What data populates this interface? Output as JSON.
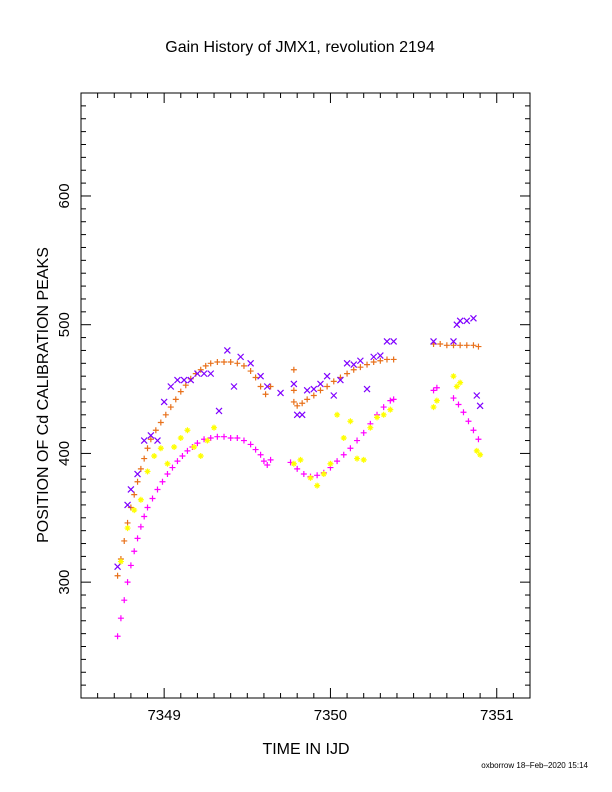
{
  "chart_data": {
    "type": "scatter",
    "title": "Gain History of JMX1, revolution 2194",
    "xlabel": "TIME IN IJD",
    "ylabel": "POSITION OF Cd CALIBRATION PEAKS",
    "xlim": [
      7348.5,
      7351.2
    ],
    "ylim": [
      210,
      680
    ],
    "xticks": [
      7349,
      7350,
      7351
    ],
    "yticks": [
      300,
      400,
      500,
      600
    ],
    "grid": false,
    "legend": "none",
    "series": [
      {
        "color": "#e8701a",
        "marker": "plus",
        "points": [
          [
            7348.72,
            305
          ],
          [
            7348.74,
            318
          ],
          [
            7348.76,
            332
          ],
          [
            7348.78,
            346
          ],
          [
            7348.8,
            358
          ],
          [
            7348.82,
            368
          ],
          [
            7348.84,
            378
          ],
          [
            7348.86,
            388
          ],
          [
            7348.88,
            396
          ],
          [
            7348.9,
            404
          ],
          [
            7348.92,
            411
          ],
          [
            7348.95,
            418
          ],
          [
            7348.98,
            424
          ],
          [
            7349.01,
            430
          ],
          [
            7349.04,
            436
          ],
          [
            7349.07,
            442
          ],
          [
            7349.1,
            448
          ],
          [
            7349.13,
            453
          ],
          [
            7349.16,
            458
          ],
          [
            7349.19,
            462
          ],
          [
            7349.22,
            465
          ],
          [
            7349.25,
            468
          ],
          [
            7349.28,
            470
          ],
          [
            7349.32,
            471
          ],
          [
            7349.36,
            471
          ],
          [
            7349.4,
            471
          ],
          [
            7349.44,
            470
          ],
          [
            7349.48,
            468
          ],
          [
            7349.52,
            464
          ],
          [
            7349.55,
            459
          ],
          [
            7349.58,
            452
          ],
          [
            7349.61,
            446
          ],
          [
            7349.64,
            452
          ],
          [
            7349.78,
            440
          ],
          [
            7349.8,
            437
          ],
          [
            7349.83,
            439
          ],
          [
            7349.86,
            442
          ],
          [
            7349.9,
            445
          ],
          [
            7349.94,
            449
          ],
          [
            7349.98,
            452
          ],
          [
            7350.02,
            456
          ],
          [
            7350.06,
            459
          ],
          [
            7350.1,
            462
          ],
          [
            7350.14,
            465
          ],
          [
            7350.18,
            467
          ],
          [
            7350.22,
            469
          ],
          [
            7350.26,
            471
          ],
          [
            7350.3,
            472
          ],
          [
            7350.34,
            473
          ],
          [
            7350.38,
            473
          ],
          [
            7350.62,
            485
          ],
          [
            7350.66,
            485
          ],
          [
            7350.7,
            484
          ],
          [
            7350.74,
            484
          ],
          [
            7350.78,
            484
          ],
          [
            7350.82,
            484
          ],
          [
            7350.86,
            484
          ],
          [
            7350.89,
            483
          ],
          [
            7349.78,
            465
          ],
          [
            7349.78,
            449
          ]
        ]
      },
      {
        "color": "#ff00ff",
        "marker": "plus",
        "points": [
          [
            7348.72,
            258
          ],
          [
            7348.74,
            272
          ],
          [
            7348.76,
            286
          ],
          [
            7348.78,
            300
          ],
          [
            7348.8,
            313
          ],
          [
            7348.82,
            324
          ],
          [
            7348.84,
            334
          ],
          [
            7348.86,
            343
          ],
          [
            7348.88,
            351
          ],
          [
            7348.9,
            358
          ],
          [
            7348.93,
            365
          ],
          [
            7348.96,
            372
          ],
          [
            7348.99,
            378
          ],
          [
            7349.02,
            384
          ],
          [
            7349.05,
            389
          ],
          [
            7349.08,
            394
          ],
          [
            7349.11,
            398
          ],
          [
            7349.14,
            402
          ],
          [
            7349.17,
            405
          ],
          [
            7349.2,
            408
          ],
          [
            7349.24,
            411
          ],
          [
            7349.28,
            412
          ],
          [
            7349.32,
            413
          ],
          [
            7349.36,
            413
          ],
          [
            7349.4,
            412
          ],
          [
            7349.44,
            412
          ],
          [
            7349.48,
            410
          ],
          [
            7349.52,
            407
          ],
          [
            7349.55,
            403
          ],
          [
            7349.58,
            399
          ],
          [
            7349.6,
            394
          ],
          [
            7349.62,
            391
          ],
          [
            7349.64,
            395
          ],
          [
            7349.76,
            393
          ],
          [
            7349.8,
            388
          ],
          [
            7349.84,
            384
          ],
          [
            7349.88,
            382
          ],
          [
            7349.92,
            383
          ],
          [
            7349.96,
            385
          ],
          [
            7350.0,
            389
          ],
          [
            7350.04,
            394
          ],
          [
            7350.08,
            399
          ],
          [
            7350.12,
            404
          ],
          [
            7350.16,
            410
          ],
          [
            7350.2,
            416
          ],
          [
            7350.24,
            423
          ],
          [
            7350.28,
            430
          ],
          [
            7350.32,
            436
          ],
          [
            7350.36,
            441
          ],
          [
            7350.38,
            442
          ],
          [
            7350.62,
            449
          ],
          [
            7350.64,
            451
          ],
          [
            7350.74,
            443
          ],
          [
            7350.77,
            438
          ],
          [
            7350.8,
            432
          ],
          [
            7350.83,
            425
          ],
          [
            7350.86,
            418
          ],
          [
            7350.89,
            411
          ]
        ]
      },
      {
        "color": "#7f00ff",
        "marker": "cross",
        "points": [
          [
            7348.72,
            312
          ],
          [
            7348.78,
            360
          ],
          [
            7348.8,
            372
          ],
          [
            7348.84,
            384
          ],
          [
            7348.88,
            410
          ],
          [
            7348.92,
            414
          ],
          [
            7348.96,
            410
          ],
          [
            7349.0,
            440
          ],
          [
            7349.04,
            452
          ],
          [
            7349.08,
            457
          ],
          [
            7349.12,
            457
          ],
          [
            7349.16,
            457
          ],
          [
            7349.2,
            462
          ],
          [
            7349.24,
            462
          ],
          [
            7349.28,
            462
          ],
          [
            7349.33,
            433
          ],
          [
            7349.38,
            480
          ],
          [
            7349.42,
            452
          ],
          [
            7349.46,
            475
          ],
          [
            7349.52,
            470
          ],
          [
            7349.58,
            460
          ],
          [
            7349.62,
            452
          ],
          [
            7349.78,
            454
          ],
          [
            7349.8,
            430
          ],
          [
            7349.83,
            430
          ],
          [
            7349.86,
            449
          ],
          [
            7349.9,
            450
          ],
          [
            7349.94,
            454
          ],
          [
            7349.98,
            460
          ],
          [
            7350.02,
            445
          ],
          [
            7350.06,
            457
          ],
          [
            7350.1,
            470
          ],
          [
            7350.14,
            469
          ],
          [
            7350.18,
            472
          ],
          [
            7350.22,
            450
          ],
          [
            7350.26,
            475
          ],
          [
            7350.3,
            476
          ],
          [
            7350.34,
            487
          ],
          [
            7350.38,
            487
          ],
          [
            7350.62,
            487
          ],
          [
            7350.74,
            487
          ],
          [
            7350.76,
            500
          ],
          [
            7350.78,
            503
          ],
          [
            7350.82,
            503
          ],
          [
            7350.86,
            505
          ],
          [
            7350.88,
            445
          ],
          [
            7350.9,
            437
          ],
          [
            7349.7,
            447
          ]
        ]
      },
      {
        "color": "#ffff00",
        "marker": "star",
        "points": [
          [
            7348.74,
            316
          ],
          [
            7348.78,
            342
          ],
          [
            7348.82,
            356
          ],
          [
            7348.86,
            364
          ],
          [
            7348.9,
            386
          ],
          [
            7348.94,
            398
          ],
          [
            7348.98,
            404
          ],
          [
            7349.02,
            392
          ],
          [
            7349.06,
            405
          ],
          [
            7349.1,
            412
          ],
          [
            7349.14,
            418
          ],
          [
            7349.18,
            405
          ],
          [
            7349.22,
            398
          ],
          [
            7349.26,
            410
          ],
          [
            7349.3,
            420
          ],
          [
            7349.78,
            392
          ],
          [
            7349.82,
            395
          ],
          [
            7349.88,
            381
          ],
          [
            7349.92,
            375
          ],
          [
            7349.96,
            384
          ],
          [
            7350.0,
            392
          ],
          [
            7350.04,
            430
          ],
          [
            7350.08,
            412
          ],
          [
            7350.12,
            425
          ],
          [
            7350.16,
            396
          ],
          [
            7350.2,
            395
          ],
          [
            7350.24,
            420
          ],
          [
            7350.28,
            428
          ],
          [
            7350.32,
            430
          ],
          [
            7350.36,
            434
          ],
          [
            7350.62,
            436
          ],
          [
            7350.64,
            441
          ],
          [
            7350.74,
            460
          ],
          [
            7350.76,
            452
          ],
          [
            7350.78,
            455
          ],
          [
            7350.88,
            402
          ],
          [
            7350.9,
            399
          ]
        ]
      }
    ]
  },
  "footer": "oxborrow 18–Feb–2020 15:14"
}
